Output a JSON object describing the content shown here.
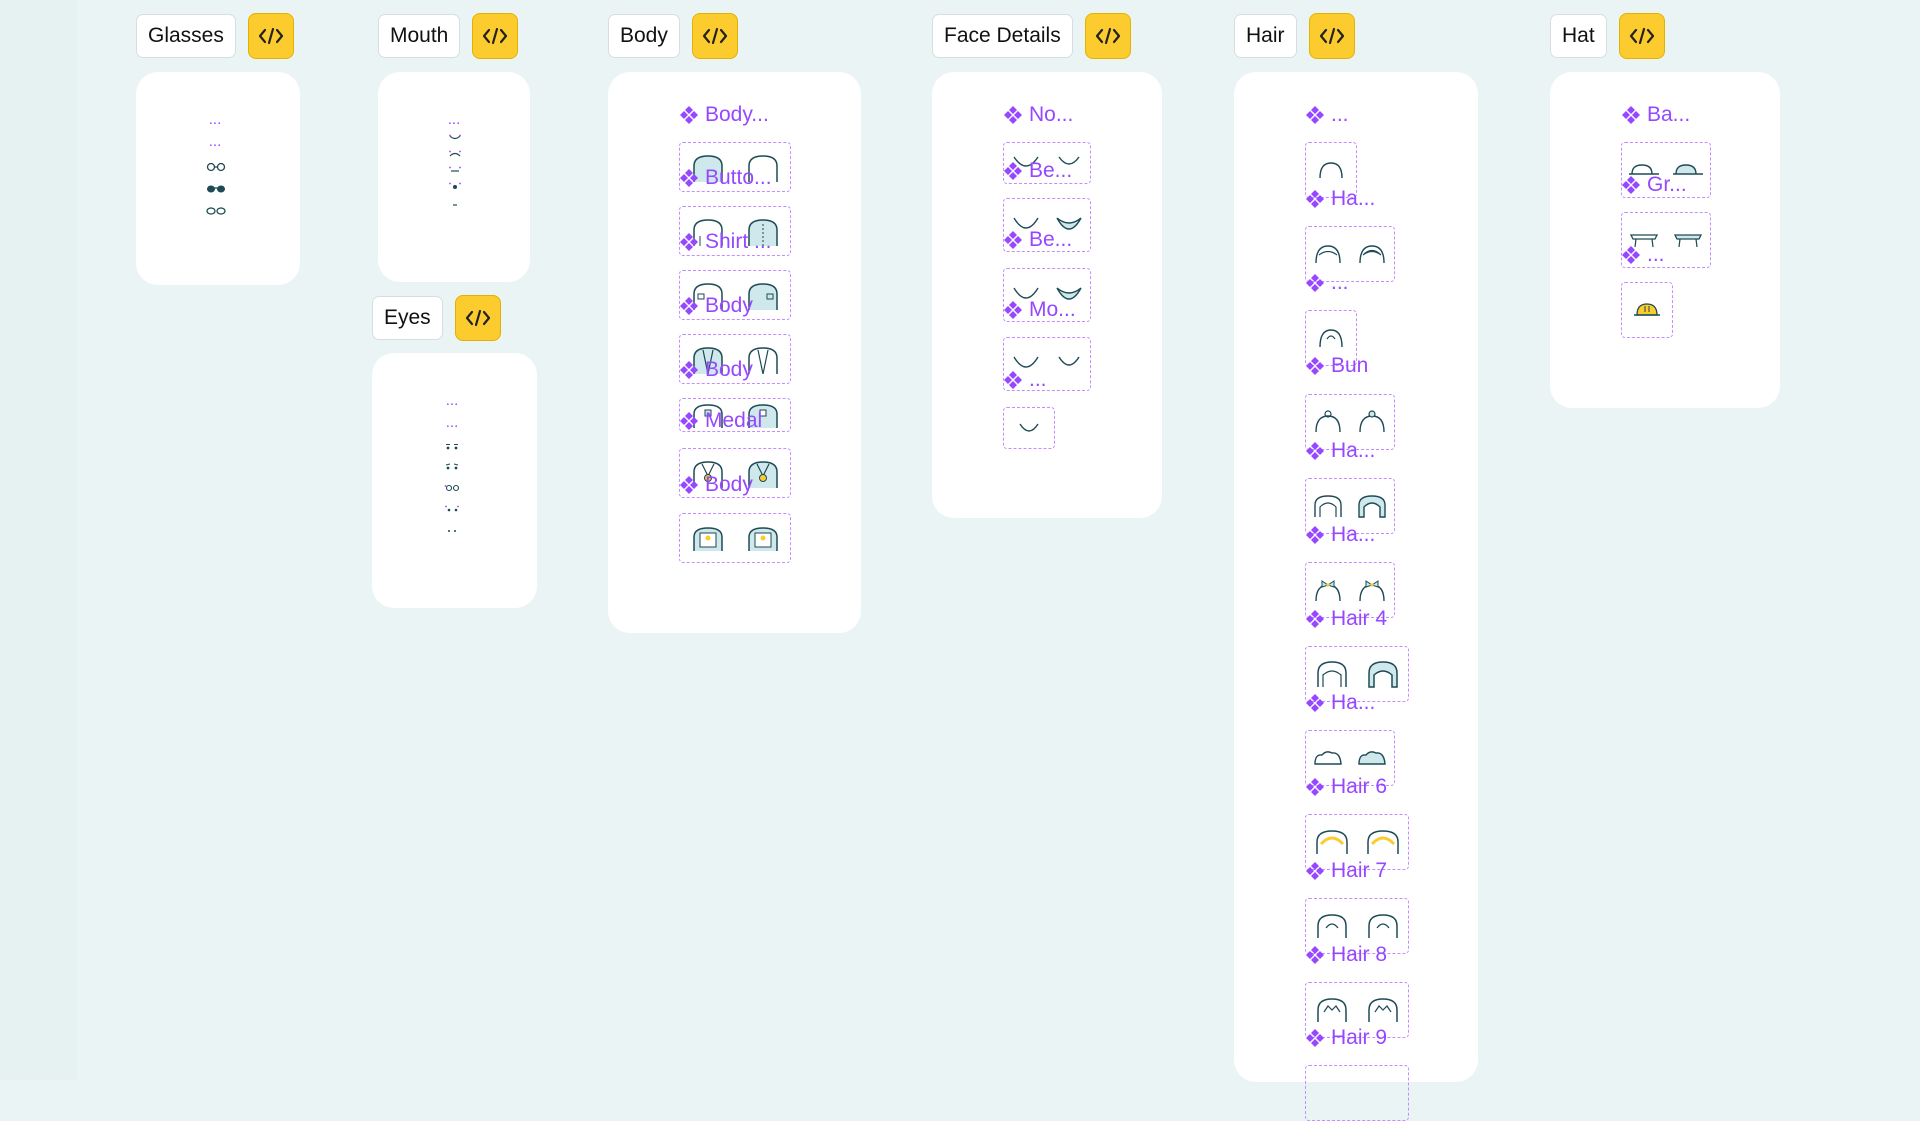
{
  "sections": {
    "glasses": {
      "label": "Glasses"
    },
    "mouth": {
      "label": "Mouth"
    },
    "eyes": {
      "label": "Eyes"
    },
    "body": {
      "label": "Body"
    },
    "face_details": {
      "label": "Face Details"
    },
    "hair": {
      "label": "Hair"
    },
    "hat": {
      "label": "Hat"
    }
  },
  "code_button": {
    "glyph": "</>"
  },
  "glasses_items": [
    "...",
    "..."
  ],
  "mouth_items": [
    "..."
  ],
  "eyes_items": [
    "...",
    "..."
  ],
  "body_components": [
    "Body...",
    "Butto...",
    "Shirt ...",
    "Body",
    "Body",
    "Medal",
    "Body"
  ],
  "face_components": [
    "No...",
    "Be...",
    "Be...",
    "Mo...",
    "..."
  ],
  "hair_components": [
    "...",
    "Ha...",
    "...",
    "Bun",
    "Ha...",
    "Ha...",
    "Hair 4",
    "Ha...",
    "Hair 6",
    "Hair 7",
    "Hair 8",
    "Hair 9"
  ],
  "hat_components": [
    "Ba...",
    "Gr...",
    "..."
  ],
  "colors": {
    "background": "#eaf4f4",
    "accent_yellow": "#fccc2f",
    "component_purple": "#9747ff",
    "variant_dash": "#c48cff",
    "icon_stroke": "#1d4a55",
    "icon_fill": "#cfe8ec"
  }
}
